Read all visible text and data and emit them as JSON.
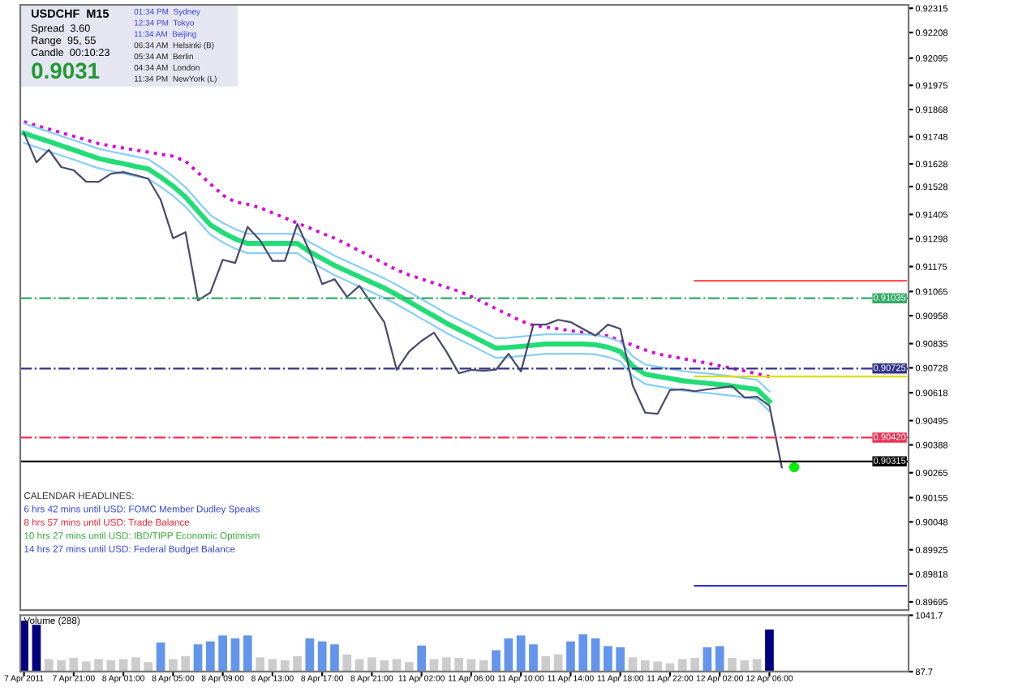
{
  "chart_data": [
    {
      "type": "line",
      "title": "USDCHF  M15",
      "annotations": [
        "Spread  3.60",
        "Range  95, 55",
        "Candle  00:10:23",
        "0.9031",
        "01:34 PM  Sydney",
        "12:34 PM  Tokyo",
        "11:34 AM  Beijing",
        "06:34 AM  Helsinki (B)",
        "05:34 AM  Berlin",
        "04:34 AM  London",
        "11:34 PM  NewYork (L)",
        "CALENDAR HEADLINES:",
        "6 hrs 42 mins until USD: FOMC Member Dudley Speaks",
        "8 hrs 57 mins until USD: Trade Balance",
        "10 hrs 27 mins until USD: IBD/TIPP Economic Optimism",
        "14 hrs 27 mins until USD: Federal Budget Balance"
      ],
      "categories": [
        null,
        null,
        null,
        null,
        null,
        null,
        null,
        null,
        null,
        null,
        null,
        null,
        null,
        null,
        null,
        null,
        null,
        null,
        null,
        null,
        null,
        null,
        null,
        null,
        null,
        null,
        null,
        null,
        null,
        null,
        null,
        null,
        null,
        null,
        null,
        null,
        null,
        null,
        null,
        null,
        null,
        null,
        null,
        null,
        null,
        null,
        null,
        null,
        null,
        null,
        null,
        null,
        null,
        null,
        null,
        null,
        null,
        null,
        null,
        null,
        null,
        null,
        null,
        null,
        null,
        null,
        null,
        null,
        null,
        null,
        null,
        null
      ],
      "series": [
        {
          "color": "#dd00dd",
          "line_style": "dotted",
          "values": [
            0.91814,
            0.91798,
            0.91782,
            0.91766,
            0.9175,
            0.91734,
            0.91718,
            0.91707,
            0.91698,
            0.91689,
            0.9168,
            0.91671,
            0.91662,
            0.9164,
            0.9159,
            0.9154,
            0.9149,
            0.9146,
            0.9145,
            0.91435,
            0.91412,
            0.9139,
            0.91367,
            0.91345,
            0.91322,
            0.913,
            0.91273,
            0.91245,
            0.91217,
            0.91189,
            0.9116,
            0.91138,
            0.9112,
            0.91102,
            0.91084,
            0.91066,
            0.91043,
            0.91016,
            0.90989,
            0.90962,
            0.90935,
            0.90916,
            0.90908,
            0.909,
            0.90892,
            0.90885,
            0.90877,
            0.90869,
            0.90848,
            0.90828,
            0.90807,
            0.90789,
            0.90779,
            0.90769,
            0.90759,
            0.90749,
            0.90737,
            0.90726,
            0.90714,
            0.90702,
            0.9069,
            null,
            null,
            null,
            null,
            null,
            null,
            null,
            null,
            null,
            null,
            null
          ]
        },
        {
          "color": "#87cefa",
          "values": [
            0.91807,
            0.91788,
            0.9177,
            0.91751,
            0.91733,
            0.91714,
            0.91695,
            0.91683,
            0.91672,
            0.9166,
            0.91649,
            0.91613,
            0.91573,
            0.91525,
            0.91463,
            0.91402,
            0.91368,
            0.9134,
            0.9132,
            0.9132,
            0.9132,
            0.9132,
            0.9132,
            0.91283,
            0.91253,
            0.91223,
            0.91198,
            0.91173,
            0.91148,
            0.91123,
            0.91094,
            0.91063,
            0.91031,
            0.91,
            0.90968,
            0.9094,
            0.90913,
            0.90885,
            0.90858,
            0.90861,
            0.90866,
            0.90871,
            0.90876,
            0.90876,
            0.90876,
            0.90876,
            0.90873,
            0.90862,
            0.90843,
            0.90778,
            0.90743,
            0.90733,
            0.90724,
            0.90714,
            0.90708,
            0.90703,
            0.90697,
            0.90691,
            0.90683,
            0.90676,
            0.90623,
            null,
            null,
            null,
            null,
            null,
            null,
            null,
            null,
            null,
            null,
            null
          ]
        },
        {
          "color": "#87cefa",
          "values": [
            0.91721,
            0.91702,
            0.91684,
            0.91665,
            0.91647,
            0.91628,
            0.91609,
            0.91597,
            0.91586,
            0.91574,
            0.91563,
            0.91527,
            0.91487,
            0.91439,
            0.91377,
            0.91316,
            0.91282,
            0.91254,
            0.91234,
            0.91234,
            0.91234,
            0.91234,
            0.91234,
            0.91197,
            0.91167,
            0.91137,
            0.91112,
            0.91087,
            0.91062,
            0.91037,
            0.91008,
            0.90977,
            0.90945,
            0.90914,
            0.90882,
            0.90854,
            0.90827,
            0.90799,
            0.90772,
            0.90775,
            0.9078,
            0.90785,
            0.9079,
            0.9079,
            0.9079,
            0.9079,
            0.90787,
            0.90776,
            0.90757,
            0.90692,
            0.90657,
            0.90647,
            0.90638,
            0.90628,
            0.90622,
            0.90617,
            0.90611,
            0.90605,
            0.90597,
            0.9059,
            0.90537,
            null,
            null,
            null,
            null,
            null,
            null,
            null,
            null,
            null,
            null,
            null
          ]
        },
        {
          "color": "#22dd77",
          "values": [
            0.91764,
            0.91745,
            0.91727,
            0.91708,
            0.9169,
            0.91671,
            0.91652,
            0.9164,
            0.91629,
            0.91617,
            0.91606,
            0.9157,
            0.9153,
            0.91482,
            0.9142,
            0.91359,
            0.91325,
            0.91297,
            0.91277,
            0.91277,
            0.91277,
            0.91277,
            0.91277,
            0.9124,
            0.9121,
            0.9118,
            0.91155,
            0.9113,
            0.91105,
            0.9108,
            0.91051,
            0.9102,
            0.90988,
            0.90957,
            0.90925,
            0.90897,
            0.9087,
            0.90842,
            0.90815,
            0.90818,
            0.90823,
            0.90828,
            0.90833,
            0.90833,
            0.90833,
            0.90833,
            0.9083,
            0.90819,
            0.908,
            0.90735,
            0.907,
            0.9069,
            0.90681,
            0.90671,
            0.90665,
            0.9066,
            0.90654,
            0.90648,
            0.9064,
            0.90633,
            0.9058,
            null,
            null,
            null,
            null,
            null,
            null,
            null,
            null,
            null,
            null,
            null
          ]
        },
        {
          "color": "#4a4a6e",
          "values": [
            0.91764,
            0.91635,
            0.9169,
            0.91614,
            0.916,
            0.9155,
            0.91549,
            0.91585,
            0.91592,
            0.91578,
            0.91563,
            0.9147,
            0.913,
            0.91327,
            0.91026,
            0.9106,
            0.91205,
            0.91191,
            0.9135,
            0.91291,
            0.912,
            0.912,
            0.91363,
            0.91241,
            0.91098,
            0.91119,
            0.91041,
            0.9109,
            0.9101,
            0.9093,
            0.90719,
            0.908,
            0.90847,
            0.90883,
            0.908,
            0.90704,
            0.90719,
            0.90715,
            0.9072,
            0.9079,
            0.90712,
            0.90919,
            0.90919,
            0.9094,
            0.9093,
            0.909,
            0.9087,
            0.90919,
            0.909,
            0.9065,
            0.9053,
            0.90525,
            0.9063,
            0.90633,
            0.90625,
            0.90633,
            0.9064,
            0.90647,
            0.90597,
            0.906,
            0.90561,
            0.90289,
            null,
            null,
            null,
            null,
            null,
            null,
            null,
            null,
            null,
            null
          ]
        },
        {
          "color": "#ff5555",
          "values": [
            null,
            null,
            null,
            null,
            null,
            null,
            null,
            null,
            null,
            null,
            null,
            null,
            null,
            null,
            null,
            null,
            null,
            null,
            null,
            null,
            null,
            null,
            null,
            null,
            null,
            null,
            null,
            null,
            null,
            null,
            null,
            null,
            null,
            null,
            null,
            null,
            null,
            null,
            null,
            null,
            null,
            null,
            null,
            null,
            null,
            null,
            null,
            null,
            null,
            null,
            null,
            null,
            null,
            null,
            0.91112,
            0.91112,
            0.91112,
            0.91112,
            0.91112,
            0.91112,
            0.91112,
            0.91112,
            0.91112,
            0.91112,
            0.91112,
            0.91112,
            0.91112,
            0.91112,
            0.91112,
            0.91112,
            0.91112,
            0.91112
          ]
        },
        {
          "color": "#dddd00",
          "values": [
            null,
            null,
            null,
            null,
            null,
            null,
            null,
            null,
            null,
            null,
            null,
            null,
            null,
            null,
            null,
            null,
            null,
            null,
            null,
            null,
            null,
            null,
            null,
            null,
            null,
            null,
            null,
            null,
            null,
            null,
            null,
            null,
            null,
            null,
            null,
            null,
            null,
            null,
            null,
            null,
            null,
            null,
            null,
            null,
            null,
            null,
            null,
            null,
            null,
            null,
            null,
            null,
            null,
            null,
            0.9069,
            0.9069,
            0.9069,
            0.9069,
            0.9069,
            0.9069,
            0.9069,
            0.9069,
            0.9069,
            0.9069,
            0.9069,
            0.9069,
            0.9069,
            0.9069,
            0.9069,
            0.9069,
            0.9069,
            0.9069
          ]
        },
        {
          "color": "#3333cc",
          "values": [
            null,
            null,
            null,
            null,
            null,
            null,
            null,
            null,
            null,
            null,
            null,
            null,
            null,
            null,
            null,
            null,
            null,
            null,
            null,
            null,
            null,
            null,
            null,
            null,
            null,
            null,
            null,
            null,
            null,
            null,
            null,
            null,
            null,
            null,
            null,
            null,
            null,
            null,
            null,
            null,
            null,
            null,
            null,
            null,
            null,
            null,
            null,
            null,
            null,
            null,
            null,
            null,
            null,
            null,
            0.89766,
            0.89766,
            0.89766,
            0.89766,
            0.89766,
            0.89766,
            0.89766,
            0.89766,
            0.89766,
            0.89766,
            0.89766,
            0.89766,
            0.89766,
            0.89766,
            0.89766,
            0.89766,
            0.89766,
            0.89766
          ]
        },
        {
          "type": "scatter",
          "color": "#00ee00",
          "values": [
            null,
            null,
            null,
            null,
            null,
            null,
            null,
            null,
            null,
            null,
            null,
            null,
            null,
            null,
            null,
            null,
            null,
            null,
            null,
            null,
            null,
            null,
            null,
            null,
            null,
            null,
            null,
            null,
            null,
            null,
            null,
            null,
            null,
            null,
            null,
            null,
            null,
            null,
            null,
            null,
            null,
            null,
            null,
            null,
            null,
            null,
            null,
            null,
            null,
            null,
            null,
            null,
            null,
            null,
            null,
            null,
            null,
            null,
            null,
            null,
            null,
            null,
            0.90289,
            null,
            null,
            null,
            null,
            null,
            null,
            null,
            null,
            null
          ]
        }
      ],
      "ref_lines": [
        {
          "axis": "y",
          "value": 0.91035,
          "label": "0.91035",
          "color": "#33aa66",
          "line_style": "dashdot"
        },
        {
          "axis": "y",
          "value": 0.90725,
          "label": "0.90725",
          "color": "#333388",
          "line_style": "dashdot"
        },
        {
          "axis": "y",
          "value": 0.9042,
          "label": "0.90420",
          "color": "#ee3355",
          "line_style": "dashdot"
        },
        {
          "axis": "y",
          "value": 0.90315,
          "label": "0.90315",
          "color": "#000000",
          "line_style": "solid"
        }
      ],
      "ylim": [
        0.89659,
        0.9233
      ],
      "yticks": [
        0.92315,
        0.92208,
        0.92095,
        0.91975,
        0.91868,
        0.91748,
        0.91628,
        0.91528,
        0.91405,
        0.91298,
        0.91175,
        0.91065,
        0.90958,
        0.90835,
        0.90728,
        0.90618,
        0.90495,
        0.90388,
        0.90265,
        0.90155,
        0.90048,
        0.89925,
        0.89818,
        0.89695
      ],
      "tick_labels": "y"
    },
    {
      "type": "bar",
      "title": "Volume (288)",
      "categories": [
        "7 Apr 2011",
        null,
        null,
        null,
        "7 Apr 21:00",
        null,
        null,
        null,
        "8 Apr 01:00",
        null,
        null,
        null,
        "8 Apr 05:00",
        null,
        null,
        null,
        "8 Apr 09:00",
        null,
        null,
        null,
        "8 Apr 13:00",
        null,
        null,
        null,
        "8 Apr 17:00",
        null,
        null,
        null,
        "8 Apr 21:00",
        null,
        null,
        null,
        "11 Apr 02:00",
        null,
        null,
        null,
        "11 Apr 06:00",
        null,
        null,
        null,
        "11 Apr 10:00",
        null,
        null,
        null,
        "11 Apr 14:00",
        null,
        null,
        null,
        "11 Apr 18:00",
        null,
        null,
        null,
        "11 Apr 22:00",
        null,
        null,
        null,
        "12 Apr 02:00",
        null,
        null,
        null,
        "12 Apr 06:00",
        null,
        null,
        null,
        null,
        null,
        null,
        null,
        null,
        null,
        null,
        null
      ],
      "values": [
        950,
        880,
        300,
        280,
        320,
        260,
        300,
        280,
        300,
        330,
        250,
        580,
        300,
        350,
        550,
        600,
        700,
        650,
        700,
        330,
        300,
        280,
        350,
        650,
        600,
        550,
        380,
        300,
        330,
        280,
        300,
        250,
        530,
        300,
        330,
        320,
        300,
        280,
        450,
        650,
        700,
        550,
        350,
        380,
        600,
        720,
        650,
        520,
        500,
        330,
        280,
        260,
        230,
        300,
        320,
        500,
        520,
        320,
        280,
        300,
        800,
        null,
        null,
        null,
        null,
        null,
        null,
        null,
        null,
        null,
        null,
        null
      ],
      "colors": [
        "#000080",
        "#000080",
        "#cccccc",
        "#cccccc",
        "#cccccc",
        "#cccccc",
        "#cccccc",
        "#cccccc",
        "#cccccc",
        "#cccccc",
        "#cccccc",
        "#6495ed",
        "#cccccc",
        "#cccccc",
        "#6495ed",
        "#6495ed",
        "#6495ed",
        "#6495ed",
        "#6495ed",
        "#cccccc",
        "#cccccc",
        "#cccccc",
        "#cccccc",
        "#6495ed",
        "#6495ed",
        "#6495ed",
        "#cccccc",
        "#cccccc",
        "#cccccc",
        "#cccccc",
        "#cccccc",
        "#cccccc",
        "#6495ed",
        "#cccccc",
        "#cccccc",
        "#cccccc",
        "#cccccc",
        "#cccccc",
        "#6495ed",
        "#6495ed",
        "#6495ed",
        "#6495ed",
        "#cccccc",
        "#cccccc",
        "#6495ed",
        "#6495ed",
        "#6495ed",
        "#6495ed",
        "#6495ed",
        "#cccccc",
        "#cccccc",
        "#cccccc",
        "#cccccc",
        "#cccccc",
        "#cccccc",
        "#6495ed",
        "#6495ed",
        "#cccccc",
        "#cccccc",
        "#cccccc",
        "#000080",
        "#cccccc",
        "#cccccc",
        "#cccccc",
        "#cccccc",
        "#cccccc",
        "#cccccc",
        "#cccccc",
        "#cccccc",
        "#cccccc",
        "#cccccc",
        "#cccccc"
      ],
      "ylim": [
        87.7,
        1041.7
      ],
      "yticks": [
        87.7,
        1041.7
      ]
    }
  ]
}
